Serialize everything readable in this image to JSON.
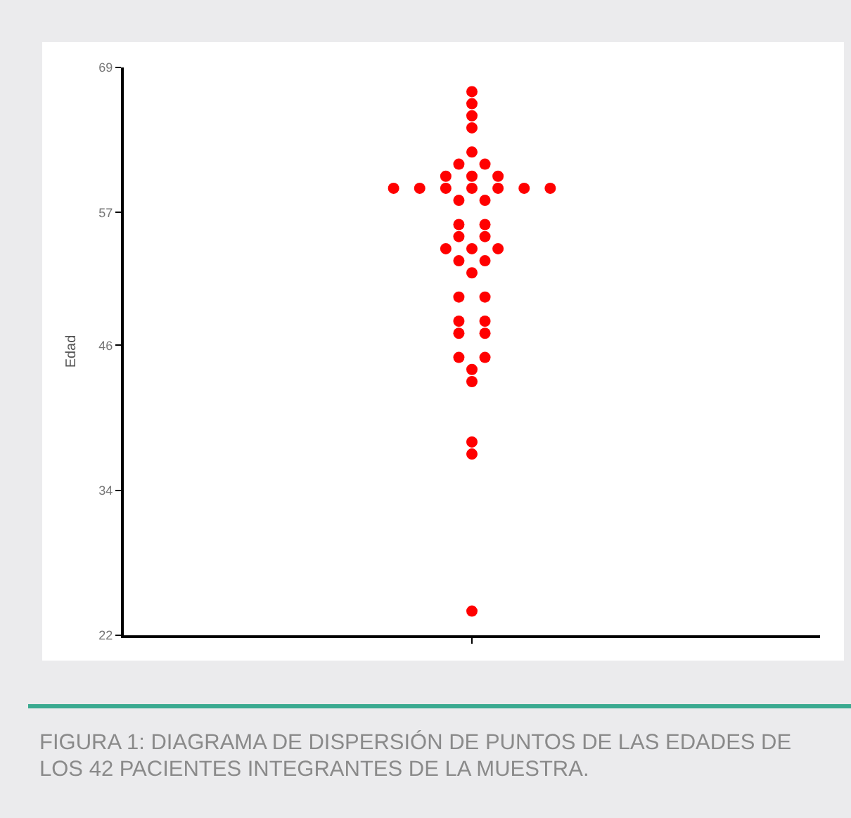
{
  "chart_data": {
    "type": "scatter",
    "ylabel": "Edad",
    "categories": [
      null
    ],
    "series": [
      {
        "color": "#ff0000",
        "x": [
          null,
          null,
          null,
          null,
          null,
          null,
          null,
          null,
          null,
          null,
          null,
          null,
          null,
          null,
          null,
          null,
          null,
          null,
          null,
          null,
          null,
          null,
          null,
          null,
          null,
          null,
          null,
          null,
          null,
          null,
          null,
          null,
          null,
          null,
          null,
          null,
          null,
          null,
          null,
          null,
          null,
          null
        ],
        "values": [
          67,
          66,
          65,
          64,
          62,
          61,
          61,
          60,
          60,
          60,
          59,
          59,
          59,
          59,
          59,
          59,
          59,
          58,
          58,
          56,
          56,
          55,
          55,
          54,
          54,
          54,
          53,
          53,
          52,
          50,
          50,
          48,
          48,
          47,
          47,
          45,
          45,
          44,
          43,
          38,
          37,
          24
        ]
      }
    ],
    "ylim": [
      22,
      69
    ],
    "yticks": [
      22,
      34,
      46,
      57,
      69
    ],
    "marker": "circle",
    "grid": false,
    "annotations": [
      "FIGURA 1: DIAGRAMA DE DISPERSIÓN DE PUNTOS DE LAS EDADES DE LOS 42 PACIENTES INTEGRANTES DE LA MUESTRA."
    ]
  }
}
